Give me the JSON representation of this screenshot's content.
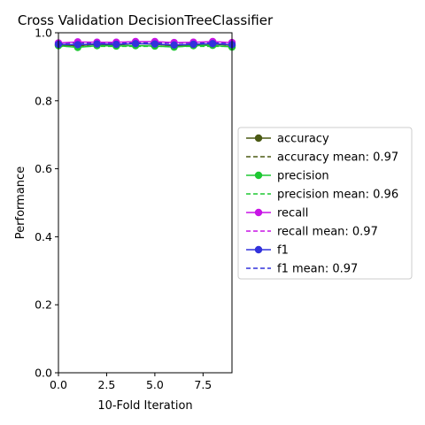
{
  "chart_data": {
    "type": "line",
    "title": "Cross Validation DecisionTreeClassifier",
    "xlabel": "10-Fold Iteration",
    "ylabel": "Performance",
    "xlim": [
      0,
      9
    ],
    "ylim": [
      0,
      1
    ],
    "x": [
      0,
      1,
      2,
      3,
      4,
      5,
      6,
      7,
      8,
      9
    ],
    "x_ticks": [
      0.0,
      2.5,
      5.0,
      7.5
    ],
    "x_tick_labels": [
      "0.0",
      "2.5",
      "5.0",
      "7.5"
    ],
    "y_ticks": [
      0.0,
      0.2,
      0.4,
      0.6,
      0.8,
      1.0
    ],
    "y_tick_labels": [
      "0.0",
      "0.2",
      "0.4",
      "0.6",
      "0.8",
      "1.0"
    ],
    "grid": false,
    "legend_position": "center-right-outside",
    "series": [
      {
        "name": "accuracy",
        "color": "#4b5a14",
        "values": [
          0.965,
          0.962,
          0.966,
          0.964,
          0.968,
          0.966,
          0.962,
          0.965,
          0.967,
          0.963
        ]
      },
      {
        "name": "precision",
        "color": "#1ec832",
        "values": [
          0.962,
          0.957,
          0.962,
          0.961,
          0.962,
          0.961,
          0.958,
          0.962,
          0.963,
          0.958
        ]
      },
      {
        "name": "recall",
        "color": "#c814e6",
        "values": [
          0.97,
          0.973,
          0.972,
          0.972,
          0.974,
          0.974,
          0.971,
          0.972,
          0.974,
          0.971
        ]
      },
      {
        "name": "f1",
        "color": "#3232dc",
        "values": [
          0.966,
          0.965,
          0.967,
          0.966,
          0.968,
          0.967,
          0.964,
          0.966,
          0.968,
          0.965
        ]
      }
    ],
    "means": [
      {
        "name": "accuracy mean: 0.97",
        "value": 0.97,
        "color": "#4b5a14"
      },
      {
        "name": "precision mean: 0.96",
        "value": 0.96,
        "color": "#1ec832"
      },
      {
        "name": "recall mean: 0.97",
        "value": 0.97,
        "color": "#c814e6"
      },
      {
        "name": "f1 mean: 0.97",
        "value": 0.97,
        "color": "#3232dc"
      }
    ]
  }
}
